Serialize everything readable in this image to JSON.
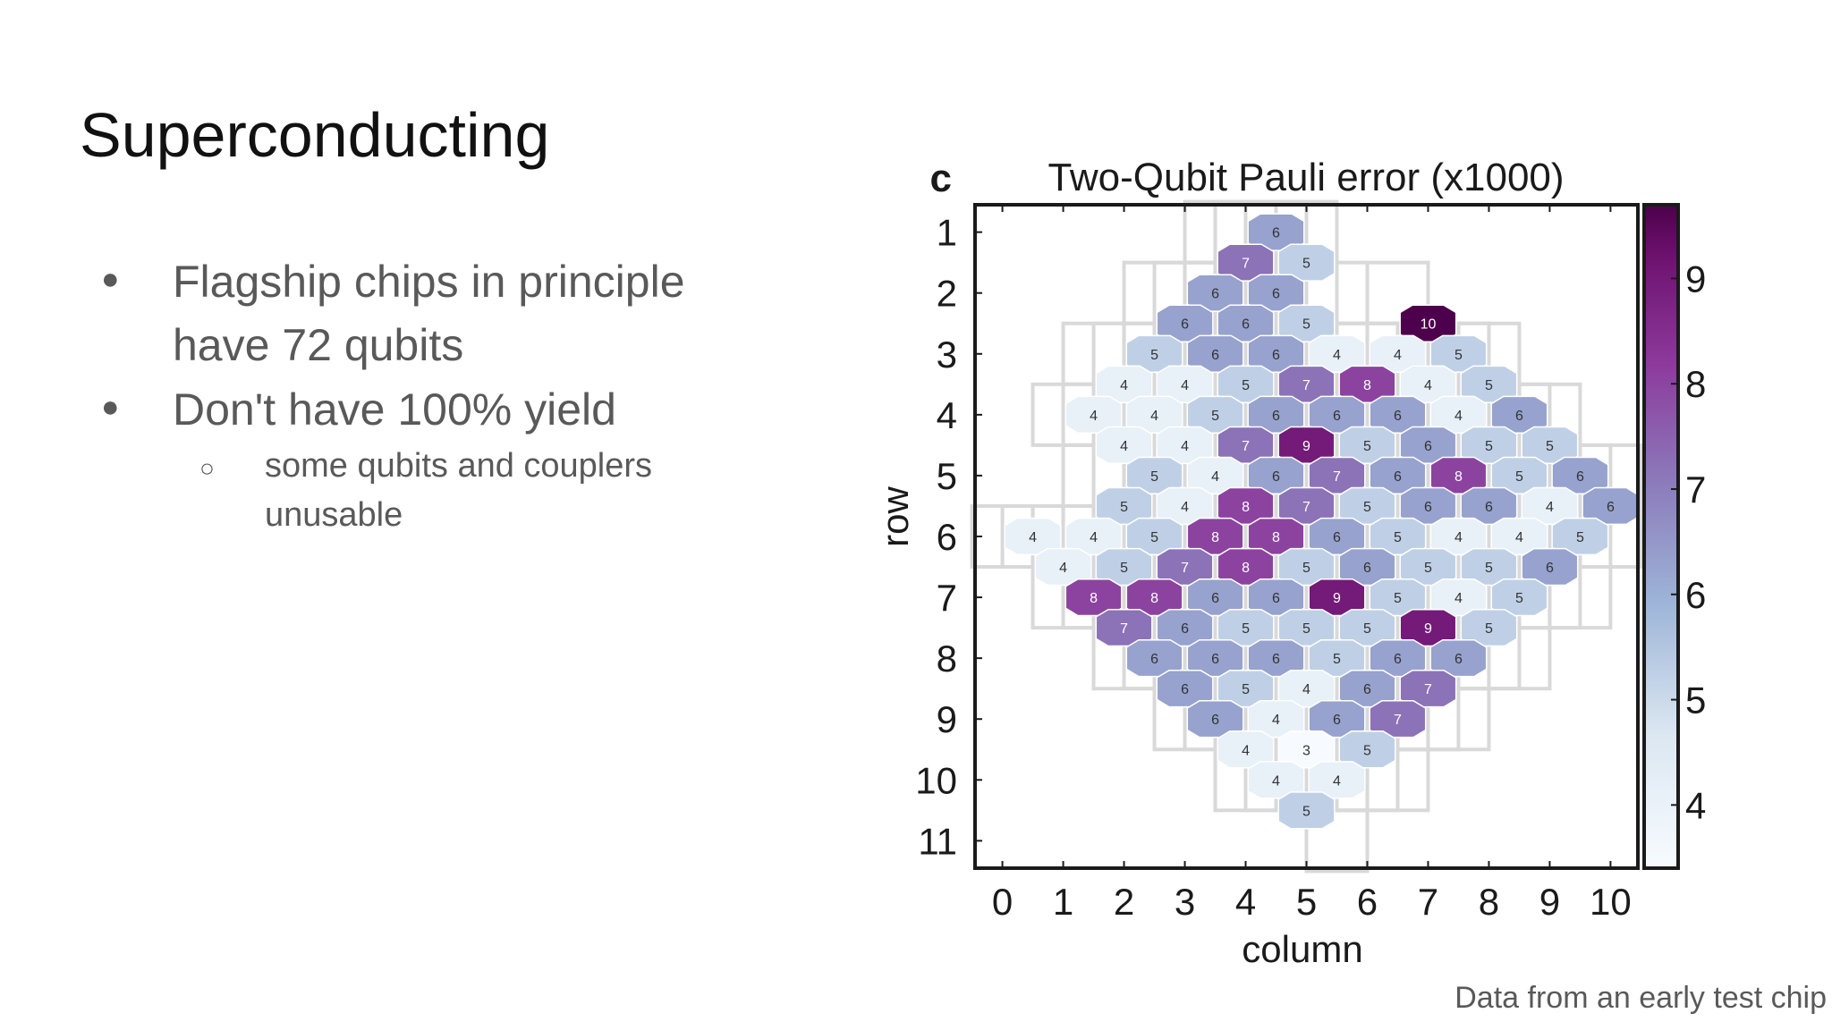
{
  "slide": {
    "title": "Superconducting",
    "bullets": [
      "Flagship chips in principle have 72 qubits",
      "Don't have 100% yield"
    ],
    "sub_bullets": [
      "some qubits and couplers unusable"
    ],
    "caption": "Data from an early test chip",
    "icons": {
      "bullet": "filled-circle-bullet",
      "sub_bullet": "hollow-circle-bullet"
    }
  },
  "chart_data": {
    "type": "heatmap",
    "panel_label": "c",
    "title": "Two-Qubit Pauli error (x1000)",
    "xlabel": "column",
    "ylabel": "row",
    "x_ticks": [
      0,
      1,
      2,
      3,
      4,
      5,
      6,
      7,
      8,
      9,
      10
    ],
    "y_ticks": [
      1,
      2,
      3,
      4,
      5,
      6,
      7,
      8,
      9,
      10,
      11
    ],
    "xlim": [
      -0.45,
      10.45
    ],
    "ylim": [
      0.55,
      11.45
    ],
    "colorbar": {
      "ticks": [
        4,
        5,
        6,
        7,
        8,
        9
      ],
      "range": [
        3.4,
        9.7
      ]
    },
    "colors": {
      "low": "#f7fbff",
      "mid": "#8c96c6",
      "high": "#4d004b",
      "grid": "#d9d9d9"
    },
    "cells": [
      {
        "x": 4.5,
        "y": 1,
        "v": 6
      },
      {
        "x": 4,
        "y": 1.5,
        "v": 7
      },
      {
        "x": 5,
        "y": 1.5,
        "v": 5
      },
      {
        "x": 3.5,
        "y": 2,
        "v": 6
      },
      {
        "x": 4.5,
        "y": 2,
        "v": 6
      },
      {
        "x": 3,
        "y": 2.5,
        "v": 6
      },
      {
        "x": 4,
        "y": 2.5,
        "v": 6
      },
      {
        "x": 5,
        "y": 2.5,
        "v": 5
      },
      {
        "x": 7,
        "y": 2.5,
        "v": 10
      },
      {
        "x": 2.5,
        "y": 3,
        "v": 5
      },
      {
        "x": 3.5,
        "y": 3,
        "v": 6
      },
      {
        "x": 4.5,
        "y": 3,
        "v": 6
      },
      {
        "x": 5.5,
        "y": 3,
        "v": 4
      },
      {
        "x": 6.5,
        "y": 3,
        "v": 4
      },
      {
        "x": 7.5,
        "y": 3,
        "v": 5
      },
      {
        "x": 2,
        "y": 3.5,
        "v": 4
      },
      {
        "x": 3,
        "y": 3.5,
        "v": 4
      },
      {
        "x": 4,
        "y": 3.5,
        "v": 5
      },
      {
        "x": 5,
        "y": 3.5,
        "v": 7
      },
      {
        "x": 6,
        "y": 3.5,
        "v": 8
      },
      {
        "x": 7,
        "y": 3.5,
        "v": 4
      },
      {
        "x": 8,
        "y": 3.5,
        "v": 5
      },
      {
        "x": 1.5,
        "y": 4,
        "v": 4
      },
      {
        "x": 2.5,
        "y": 4,
        "v": 4
      },
      {
        "x": 3.5,
        "y": 4,
        "v": 5
      },
      {
        "x": 4.5,
        "y": 4,
        "v": 6
      },
      {
        "x": 5.5,
        "y": 4,
        "v": 6
      },
      {
        "x": 6.5,
        "y": 4,
        "v": 6
      },
      {
        "x": 7.5,
        "y": 4,
        "v": 4
      },
      {
        "x": 8.5,
        "y": 4,
        "v": 6
      },
      {
        "x": 2,
        "y": 4.5,
        "v": 4
      },
      {
        "x": 3,
        "y": 4.5,
        "v": 4
      },
      {
        "x": 4,
        "y": 4.5,
        "v": 7
      },
      {
        "x": 5,
        "y": 4.5,
        "v": 9
      },
      {
        "x": 6,
        "y": 4.5,
        "v": 5
      },
      {
        "x": 7,
        "y": 4.5,
        "v": 6
      },
      {
        "x": 8,
        "y": 4.5,
        "v": 5
      },
      {
        "x": 9,
        "y": 4.5,
        "v": 5
      },
      {
        "x": 2.5,
        "y": 5,
        "v": 5
      },
      {
        "x": 3.5,
        "y": 5,
        "v": 4
      },
      {
        "x": 4.5,
        "y": 5,
        "v": 6
      },
      {
        "x": 5.5,
        "y": 5,
        "v": 7
      },
      {
        "x": 6.5,
        "y": 5,
        "v": 6
      },
      {
        "x": 7.5,
        "y": 5,
        "v": 8
      },
      {
        "x": 8.5,
        "y": 5,
        "v": 5
      },
      {
        "x": 9.5,
        "y": 5,
        "v": 6
      },
      {
        "x": 2,
        "y": 5.5,
        "v": 5
      },
      {
        "x": 3,
        "y": 5.5,
        "v": 4
      },
      {
        "x": 4,
        "y": 5.5,
        "v": 8
      },
      {
        "x": 5,
        "y": 5.5,
        "v": 7
      },
      {
        "x": 6,
        "y": 5.5,
        "v": 5
      },
      {
        "x": 7,
        "y": 5.5,
        "v": 6
      },
      {
        "x": 8,
        "y": 5.5,
        "v": 6
      },
      {
        "x": 9,
        "y": 5.5,
        "v": 4
      },
      {
        "x": 10,
        "y": 5.5,
        "v": 6
      },
      {
        "x": 0.5,
        "y": 6,
        "v": 4
      },
      {
        "x": 1.5,
        "y": 6,
        "v": 4
      },
      {
        "x": 2.5,
        "y": 6,
        "v": 5
      },
      {
        "x": 3.5,
        "y": 6,
        "v": 8
      },
      {
        "x": 4.5,
        "y": 6,
        "v": 8
      },
      {
        "x": 5.5,
        "y": 6,
        "v": 6
      },
      {
        "x": 6.5,
        "y": 6,
        "v": 5
      },
      {
        "x": 7.5,
        "y": 6,
        "v": 4
      },
      {
        "x": 8.5,
        "y": 6,
        "v": 4
      },
      {
        "x": 9.5,
        "y": 6,
        "v": 5
      },
      {
        "x": 1,
        "y": 6.5,
        "v": 4
      },
      {
        "x": 2,
        "y": 6.5,
        "v": 5
      },
      {
        "x": 3,
        "y": 6.5,
        "v": 7
      },
      {
        "x": 4,
        "y": 6.5,
        "v": 8
      },
      {
        "x": 5,
        "y": 6.5,
        "v": 5
      },
      {
        "x": 6,
        "y": 6.5,
        "v": 6
      },
      {
        "x": 7,
        "y": 6.5,
        "v": 5
      },
      {
        "x": 8,
        "y": 6.5,
        "v": 5
      },
      {
        "x": 9,
        "y": 6.5,
        "v": 6
      },
      {
        "x": 1.5,
        "y": 7,
        "v": 8
      },
      {
        "x": 2.5,
        "y": 7,
        "v": 8
      },
      {
        "x": 3.5,
        "y": 7,
        "v": 6
      },
      {
        "x": 4.5,
        "y": 7,
        "v": 6
      },
      {
        "x": 5.5,
        "y": 7,
        "v": 9
      },
      {
        "x": 6.5,
        "y": 7,
        "v": 5
      },
      {
        "x": 7.5,
        "y": 7,
        "v": 4
      },
      {
        "x": 8.5,
        "y": 7,
        "v": 5
      },
      {
        "x": 2,
        "y": 7.5,
        "v": 7
      },
      {
        "x": 3,
        "y": 7.5,
        "v": 6
      },
      {
        "x": 4,
        "y": 7.5,
        "v": 5
      },
      {
        "x": 5,
        "y": 7.5,
        "v": 5
      },
      {
        "x": 6,
        "y": 7.5,
        "v": 5
      },
      {
        "x": 7,
        "y": 7.5,
        "v": 9
      },
      {
        "x": 8,
        "y": 7.5,
        "v": 5
      },
      {
        "x": 2.5,
        "y": 8,
        "v": 6
      },
      {
        "x": 3.5,
        "y": 8,
        "v": 6
      },
      {
        "x": 4.5,
        "y": 8,
        "v": 6
      },
      {
        "x": 5.5,
        "y": 8,
        "v": 5
      },
      {
        "x": 6.5,
        "y": 8,
        "v": 6
      },
      {
        "x": 7.5,
        "y": 8,
        "v": 6
      },
      {
        "x": 3,
        "y": 8.5,
        "v": 6
      },
      {
        "x": 4,
        "y": 8.5,
        "v": 5
      },
      {
        "x": 5,
        "y": 8.5,
        "v": 4
      },
      {
        "x": 6,
        "y": 8.5,
        "v": 6
      },
      {
        "x": 7,
        "y": 8.5,
        "v": 7
      },
      {
        "x": 3.5,
        "y": 9,
        "v": 6
      },
      {
        "x": 4.5,
        "y": 9,
        "v": 4
      },
      {
        "x": 5.5,
        "y": 9,
        "v": 6
      },
      {
        "x": 6.5,
        "y": 9,
        "v": 7
      },
      {
        "x": 4,
        "y": 9.5,
        "v": 4
      },
      {
        "x": 5,
        "y": 9.5,
        "v": 3
      },
      {
        "x": 6,
        "y": 9.5,
        "v": 5
      },
      {
        "x": 4.5,
        "y": 10,
        "v": 4
      },
      {
        "x": 5.5,
        "y": 10,
        "v": 4
      },
      {
        "x": 5,
        "y": 10.5,
        "v": 5
      }
    ]
  }
}
